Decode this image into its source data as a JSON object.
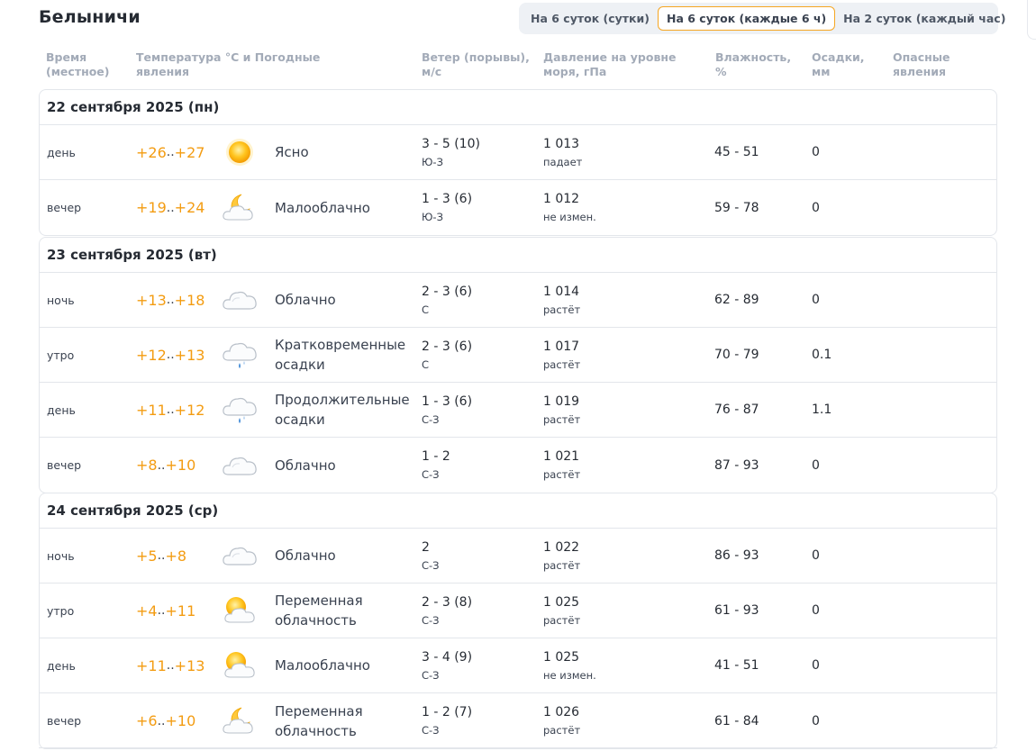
{
  "city": "Белыничи",
  "tabs": [
    {
      "label": "На 6 суток (сутки)",
      "active": false
    },
    {
      "label": "На 6 суток (каждые 6 ч)",
      "active": true
    },
    {
      "label": "На 2 суток (каждый час)",
      "active": false
    }
  ],
  "headers": {
    "time": "Время\n(местное)",
    "temp": "Температура °C и Погодные\nявления",
    "wind": "Ветер (порывы),\nм/с",
    "pressure": "Давление на уровне\nморя, гПа",
    "humidity": "Влажность,\n%",
    "precip": "Осадки,\nмм",
    "danger": "Опасные\nявления"
  },
  "days": [
    {
      "title": "22 сентября 2025 (пн)",
      "rows": [
        {
          "time": "день",
          "t_min": "+26",
          "t_max": "+27",
          "icon": "sun-icon",
          "desc": "Ясно",
          "wind": "3 - 5 (10)",
          "wind_dir": "Ю-З",
          "pressure": "1 013",
          "pressure_trend": "падает",
          "humidity": "45 - 51",
          "precip": "0"
        },
        {
          "time": "вечер",
          "t_min": "+19",
          "t_max": "+24",
          "icon": "moon-cloud-icon",
          "desc": "Малооблачно",
          "wind": "1 - 3 (6)",
          "wind_dir": "Ю-З",
          "pressure": "1 012",
          "pressure_trend": "не измен.",
          "humidity": "59 - 78",
          "precip": "0"
        }
      ]
    },
    {
      "title": "23 сентября 2025 (вт)",
      "rows": [
        {
          "time": "ночь",
          "t_min": "+13",
          "t_max": "+18",
          "icon": "cloud-icon",
          "desc": "Облачно",
          "wind": "2 - 3 (6)",
          "wind_dir": "С",
          "pressure": "1 014",
          "pressure_trend": "растёт",
          "humidity": "62 - 89",
          "precip": "0"
        },
        {
          "time": "утро",
          "t_min": "+12",
          "t_max": "+13",
          "icon": "cloud-rain-icon",
          "desc": "Кратковременные осадки",
          "wind": "2 - 3 (6)",
          "wind_dir": "С",
          "pressure": "1 017",
          "pressure_trend": "растёт",
          "humidity": "70 - 79",
          "precip": "0.1"
        },
        {
          "time": "день",
          "t_min": "+11",
          "t_max": "+12",
          "icon": "cloud-rain-icon",
          "desc": "Продолжительные осадки",
          "wind": "1 - 3 (6)",
          "wind_dir": "С-З",
          "pressure": "1 019",
          "pressure_trend": "растёт",
          "humidity": "76 - 87",
          "precip": "1.1"
        },
        {
          "time": "вечер",
          "t_min": "+8",
          "t_max": "+10",
          "icon": "cloud-icon",
          "desc": "Облачно",
          "wind": "1 - 2",
          "wind_dir": "С-З",
          "pressure": "1 021",
          "pressure_trend": "растёт",
          "humidity": "87 - 93",
          "precip": "0"
        }
      ]
    },
    {
      "title": "24 сентября 2025 (ср)",
      "rows": [
        {
          "time": "ночь",
          "t_min": "+5",
          "t_max": "+8",
          "icon": "cloud-icon",
          "desc": "Облачно",
          "wind": "2",
          "wind_dir": "С-З",
          "pressure": "1 022",
          "pressure_trend": "растёт",
          "humidity": "86 - 93",
          "precip": "0"
        },
        {
          "time": "утро",
          "t_min": "+4",
          "t_max": "+11",
          "icon": "sun-cloud-icon",
          "desc": "Переменная облачность",
          "wind": "2 - 3 (8)",
          "wind_dir": "С-З",
          "pressure": "1 025",
          "pressure_trend": "растёт",
          "humidity": "61 - 93",
          "precip": "0"
        },
        {
          "time": "день",
          "t_min": "+11",
          "t_max": "+13",
          "icon": "sun-cloud-icon",
          "desc": "Малооблачно",
          "wind": "3 - 4 (9)",
          "wind_dir": "С-З",
          "pressure": "1 025",
          "pressure_trend": "не измен.",
          "humidity": "41 - 51",
          "precip": "0"
        },
        {
          "time": "вечер",
          "t_min": "+6",
          "t_max": "+10",
          "icon": "moon-cloud-icon",
          "desc": "Переменная облачность",
          "wind": "1 - 2 (7)",
          "wind_dir": "С-З",
          "pressure": "1 026",
          "pressure_trend": "растёт",
          "humidity": "61 - 84",
          "precip": "0"
        }
      ]
    }
  ]
}
